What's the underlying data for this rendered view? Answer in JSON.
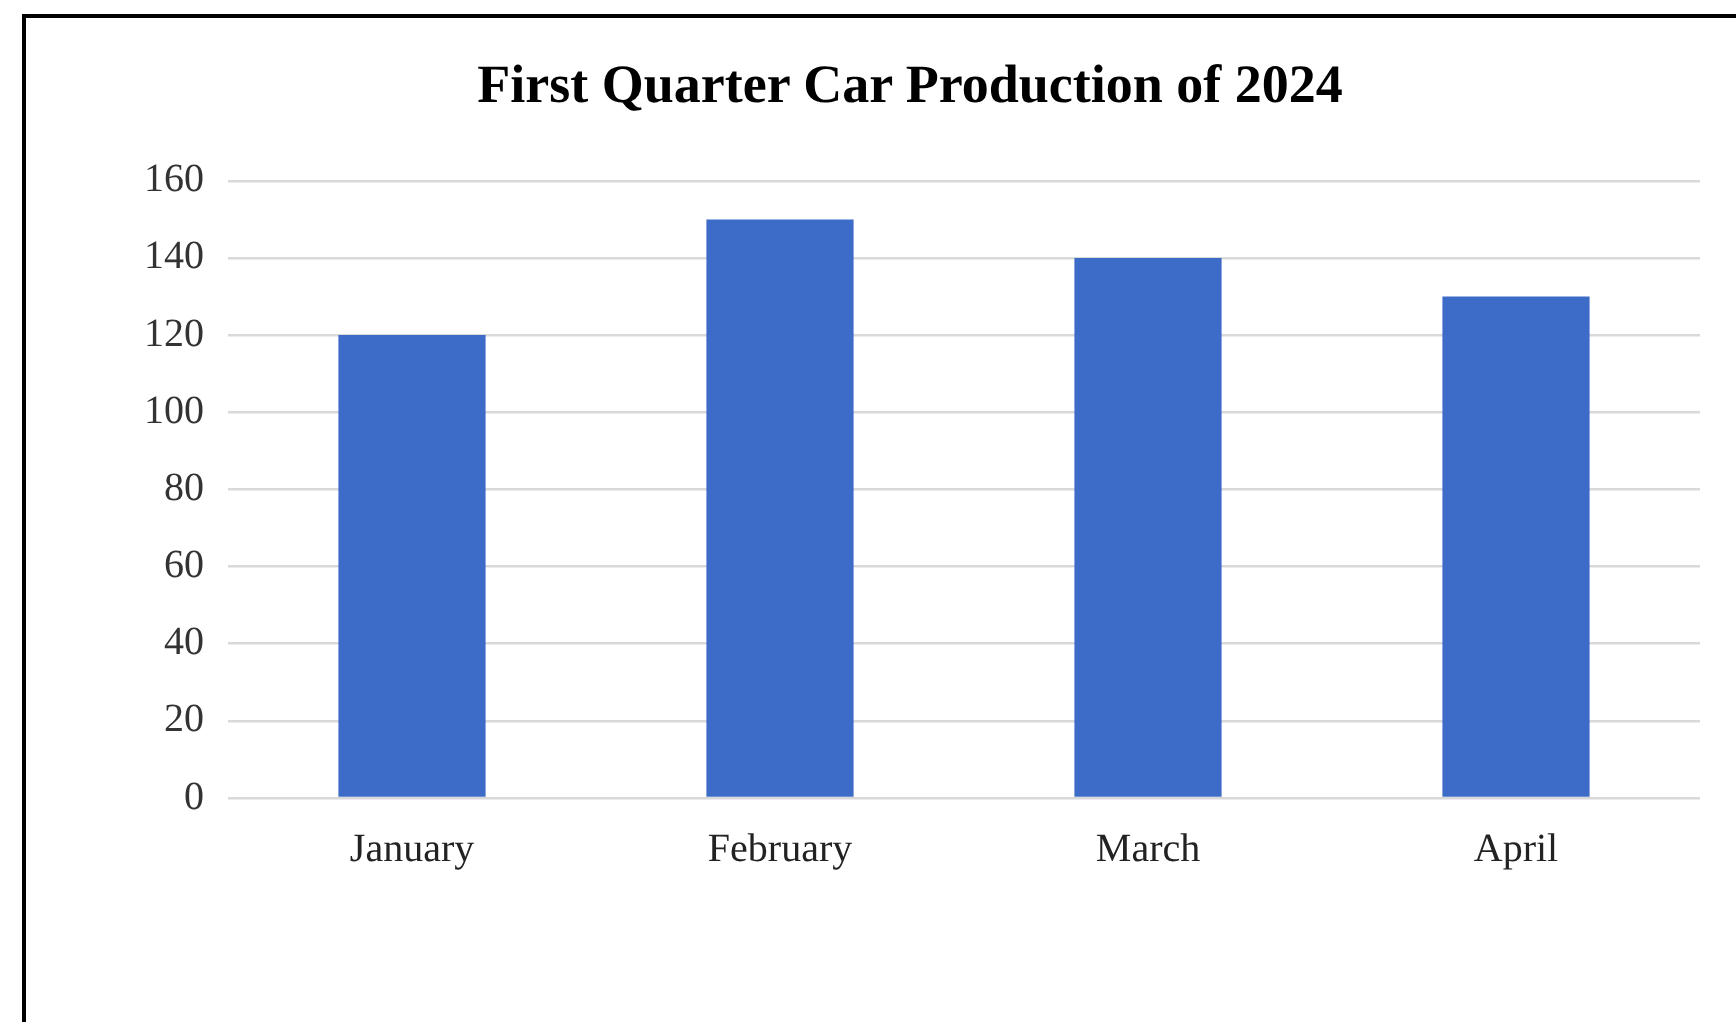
{
  "chart_data": {
    "type": "bar",
    "title": "First Quarter Car Production of 2024",
    "categories": [
      "January",
      "February",
      "March",
      "April"
    ],
    "values": [
      120,
      150,
      140,
      130
    ],
    "color": "#3d6cc8",
    "ylim": [
      0,
      160
    ],
    "yticks": [
      0,
      20,
      40,
      60,
      80,
      100,
      120,
      140,
      160
    ],
    "grid": "y",
    "legend": false
  }
}
